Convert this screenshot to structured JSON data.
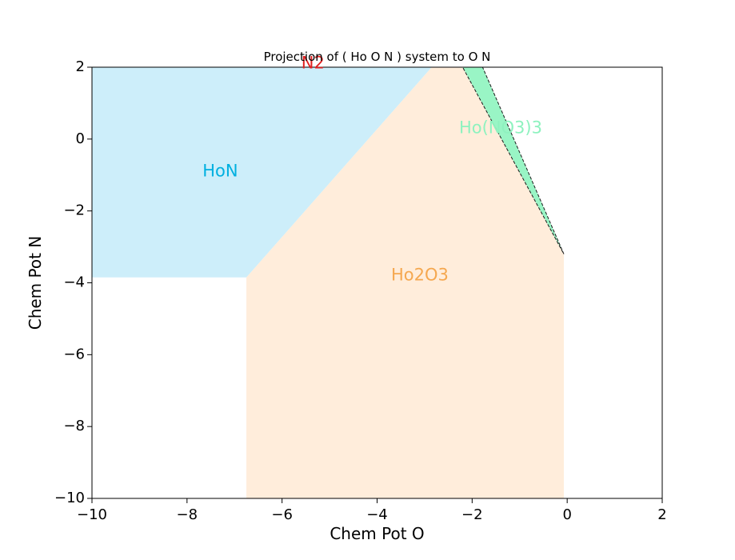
{
  "chart_data": {
    "type": "area",
    "title": "Projection of ( Ho O N ) system to O N",
    "xlabel": "Chem Pot O",
    "ylabel": "Chem Pot N",
    "xlim": [
      -10,
      2
    ],
    "ylim": [
      -10,
      2
    ],
    "xticks": [
      -10,
      -8,
      -6,
      -4,
      -2,
      0,
      2
    ],
    "yticks": [
      -10,
      -8,
      -6,
      -4,
      -2,
      0,
      2
    ],
    "xtick_labels": [
      "−10",
      "−8",
      "−6",
      "−4",
      "−2",
      "0",
      "2"
    ],
    "ytick_labels": [
      "−10",
      "−8",
      "−6",
      "−4",
      "−2",
      "0",
      "2"
    ],
    "grid": false,
    "regions": [
      {
        "name": "HoN",
        "color": "#cdeefa",
        "label_color": "#00b0e0",
        "label_at": [
          -7.3,
          -0.9
        ],
        "polygon": [
          [
            -10,
            2
          ],
          [
            -2.85,
            2
          ],
          [
            -6.75,
            -3.85
          ],
          [
            -10,
            -3.85
          ]
        ]
      },
      {
        "name": "Ho2O3",
        "color": "#ffeddb",
        "label_color": "#f5a850",
        "label_at": [
          -3.1,
          -3.8
        ],
        "polygon": [
          [
            -2.85,
            2
          ],
          [
            -2.2,
            2
          ],
          [
            -0.07,
            -3.2
          ],
          [
            -0.07,
            -10
          ],
          [
            -6.75,
            -10
          ],
          [
            -6.75,
            -3.85
          ]
        ]
      },
      {
        "name": "Ho(NO3)3",
        "color": "#99f5c5",
        "label_color": "#8ef2bf",
        "label_at": [
          -1.4,
          0.3
        ],
        "dashed": true,
        "polygon": [
          [
            -2.2,
            2
          ],
          [
            -1.78,
            2
          ],
          [
            -0.07,
            -3.2
          ]
        ]
      },
      {
        "name": "N2",
        "color": "#ffffff",
        "label_color": "#e02020",
        "label_at": [
          -5.35,
          2.1
        ],
        "polygon": []
      }
    ]
  }
}
